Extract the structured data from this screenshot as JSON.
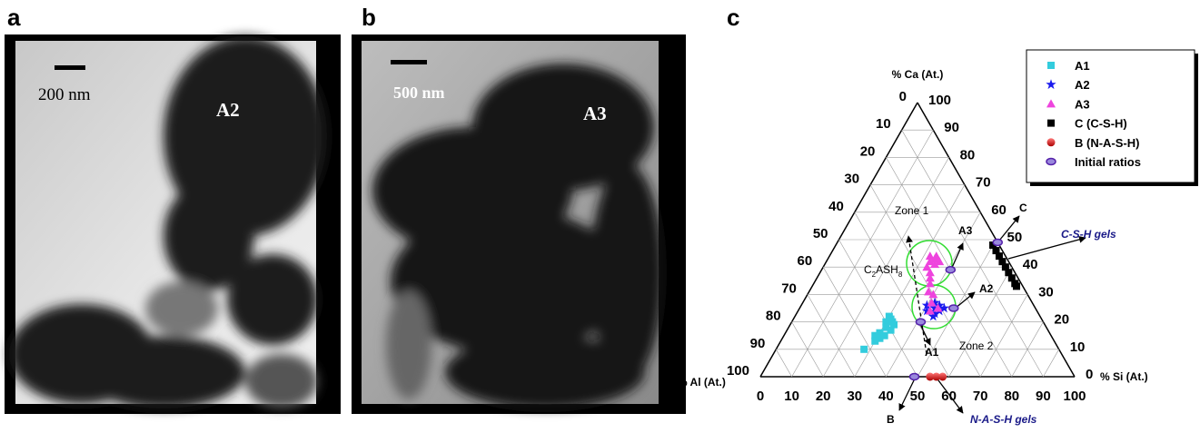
{
  "panels": [
    {
      "label": "a",
      "scale": "200 nm",
      "sample": "A2"
    },
    {
      "label": "b",
      "scale": "500 nm",
      "sample": "A3"
    },
    {
      "label": "c"
    }
  ],
  "ternary": {
    "top_label": "% Ca (At.)",
    "left_label": "% Al (At.)",
    "right_label": "% Si (At.)",
    "ticks": [
      0,
      10,
      20,
      30,
      40,
      50,
      60,
      70,
      80,
      90,
      100
    ],
    "annotations": {
      "zone1": "Zone 1",
      "zone2": "Zone 2",
      "a3": "A3",
      "a2": "A2",
      "a1": "A1",
      "c": "C",
      "b": "B",
      "csh": "C-S-H gels",
      "nash": "N-A-S-H gels"
    },
    "phase_label": [
      "C",
      "2",
      "ASH",
      "8"
    ],
    "series": [
      {
        "name": "A1",
        "color": "#33ccdd",
        "marker": "square",
        "points": [
          [
            22,
            30
          ],
          [
            21,
            31
          ],
          [
            20,
            30
          ],
          [
            20,
            32
          ],
          [
            19,
            33
          ],
          [
            18,
            31
          ],
          [
            17,
            33
          ],
          [
            16,
            30
          ],
          [
            15,
            29
          ],
          [
            14,
            31
          ],
          [
            13,
            30
          ],
          [
            15,
            32
          ],
          [
            10,
            28
          ]
        ]
      },
      {
        "name": "A2",
        "color": "#1a1aee",
        "marker": "star",
        "points": [
          [
            27,
            42
          ],
          [
            26,
            44
          ],
          [
            25,
            43
          ],
          [
            24,
            45
          ],
          [
            23,
            44
          ],
          [
            25,
            46
          ],
          [
            22,
            44
          ],
          [
            26,
            40
          ],
          [
            24,
            41
          ]
        ]
      },
      {
        "name": "A3",
        "color": "#ee44dd",
        "marker": "triangle",
        "points": [
          [
            44,
            32
          ],
          [
            43,
            34
          ],
          [
            42,
            33
          ],
          [
            41,
            35
          ],
          [
            40,
            33
          ],
          [
            42,
            36
          ],
          [
            38,
            35
          ],
          [
            36,
            36
          ],
          [
            34,
            37
          ],
          [
            31,
            38
          ],
          [
            30,
            40
          ],
          [
            27,
            41
          ],
          [
            25,
            44
          ],
          [
            24,
            42
          ],
          [
            44,
            34
          ]
        ]
      },
      {
        "name": "C (C-S-H)",
        "color": "#000000",
        "marker": "square",
        "points": [
          [
            48,
            50
          ],
          [
            46,
            52
          ],
          [
            44,
            54
          ],
          [
            42,
            56
          ],
          [
            40,
            58
          ],
          [
            38,
            60
          ],
          [
            36,
            62
          ],
          [
            34,
            64
          ],
          [
            33,
            65
          ]
        ]
      },
      {
        "name": "B (N-A-S-H)",
        "color": "#dd1111",
        "marker": "circle",
        "points": [
          [
            0,
            54
          ],
          [
            0,
            56
          ],
          [
            0,
            58
          ]
        ]
      },
      {
        "name": "Initial ratios",
        "color": "#5522aa",
        "marker": "ellipse",
        "points": [
          [
            49,
            51
          ],
          [
            39,
            41
          ],
          [
            25,
            49
          ],
          [
            20,
            41
          ],
          [
            0,
            49
          ]
        ]
      }
    ]
  }
}
